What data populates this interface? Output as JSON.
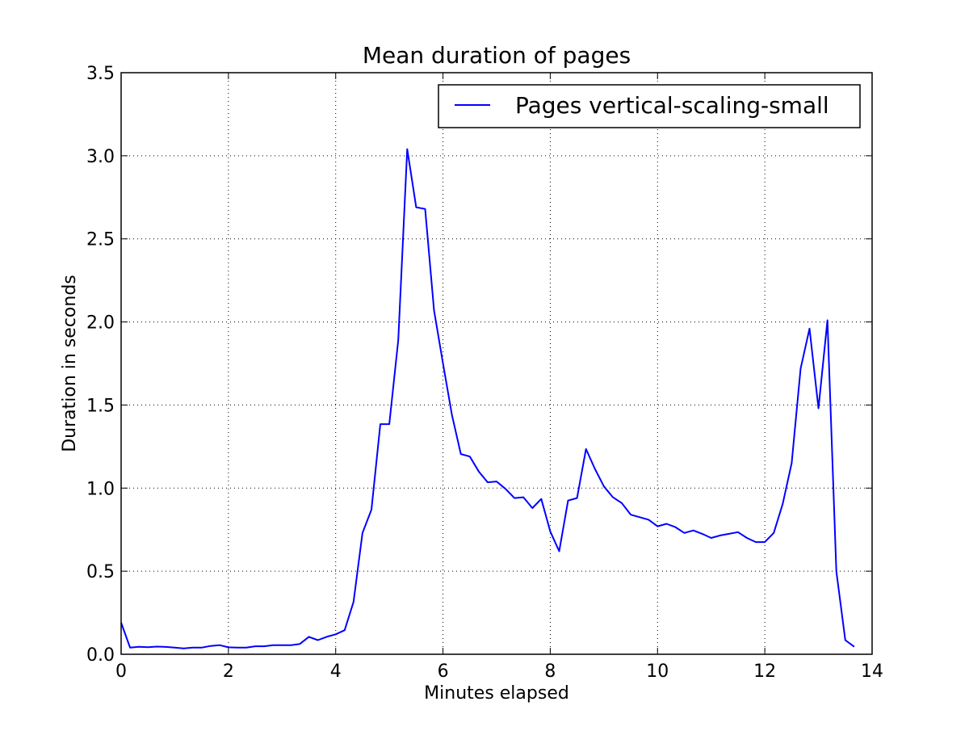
{
  "chart_data": {
    "type": "line",
    "title": "Mean duration of pages",
    "xlabel": "Minutes elapsed",
    "ylabel": "Duration in seconds",
    "xlim": [
      0,
      14
    ],
    "ylim": [
      0,
      3.5
    ],
    "xticks": [
      "0",
      "2",
      "4",
      "6",
      "8",
      "10",
      "12",
      "14"
    ],
    "yticks": [
      "0.0",
      "0.5",
      "1.0",
      "1.5",
      "2.0",
      "2.5",
      "3.0",
      "3.5"
    ],
    "grid": true,
    "legend_position": "top-right",
    "series": [
      {
        "name": "Pages vertical-scaling-small",
        "color": "#0000ff",
        "x": [
          0,
          0.167,
          0.333,
          0.5,
          0.667,
          0.833,
          1.0,
          1.167,
          1.333,
          1.5,
          1.667,
          1.833,
          2.0,
          2.167,
          2.333,
          2.5,
          2.667,
          2.833,
          3.0,
          3.167,
          3.333,
          3.5,
          3.667,
          3.833,
          4.0,
          4.167,
          4.333,
          4.5,
          4.667,
          4.833,
          5.0,
          5.167,
          5.333,
          5.5,
          5.667,
          5.833,
          6.0,
          6.167,
          6.333,
          6.5,
          6.667,
          6.833,
          7.0,
          7.167,
          7.333,
          7.5,
          7.667,
          7.833,
          8.0,
          8.167,
          8.333,
          8.5,
          8.667,
          8.833,
          9.0,
          9.167,
          9.333,
          9.5,
          9.667,
          9.833,
          10.0,
          10.167,
          10.333,
          10.5,
          10.667,
          10.833,
          11.0,
          11.167,
          11.333,
          11.5,
          11.667,
          11.833,
          12.0,
          12.167,
          12.333,
          12.5,
          12.667,
          12.833,
          13.0,
          13.167,
          13.333,
          13.5,
          13.667
        ],
        "y": [
          0.19,
          0.04,
          0.045,
          0.043,
          0.046,
          0.044,
          0.04,
          0.035,
          0.04,
          0.04,
          0.05,
          0.055,
          0.042,
          0.04,
          0.04,
          0.048,
          0.048,
          0.055,
          0.055,
          0.055,
          0.062,
          0.105,
          0.085,
          0.105,
          0.12,
          0.145,
          0.315,
          0.73,
          0.87,
          1.385,
          1.385,
          1.89,
          3.04,
          2.69,
          2.68,
          2.07,
          1.75,
          1.44,
          1.205,
          1.19,
          1.1,
          1.035,
          1.04,
          0.995,
          0.94,
          0.945,
          0.88,
          0.935,
          0.74,
          0.62,
          0.925,
          0.94,
          1.235,
          1.115,
          1.01,
          0.945,
          0.91,
          0.84,
          0.825,
          0.81,
          0.77,
          0.785,
          0.765,
          0.73,
          0.745,
          0.725,
          0.7,
          0.715,
          0.725,
          0.735,
          0.7,
          0.675,
          0.675,
          0.73,
          0.905,
          1.15,
          1.72,
          1.96,
          1.48,
          2.01,
          0.5,
          0.085,
          0.045
        ]
      }
    ]
  }
}
